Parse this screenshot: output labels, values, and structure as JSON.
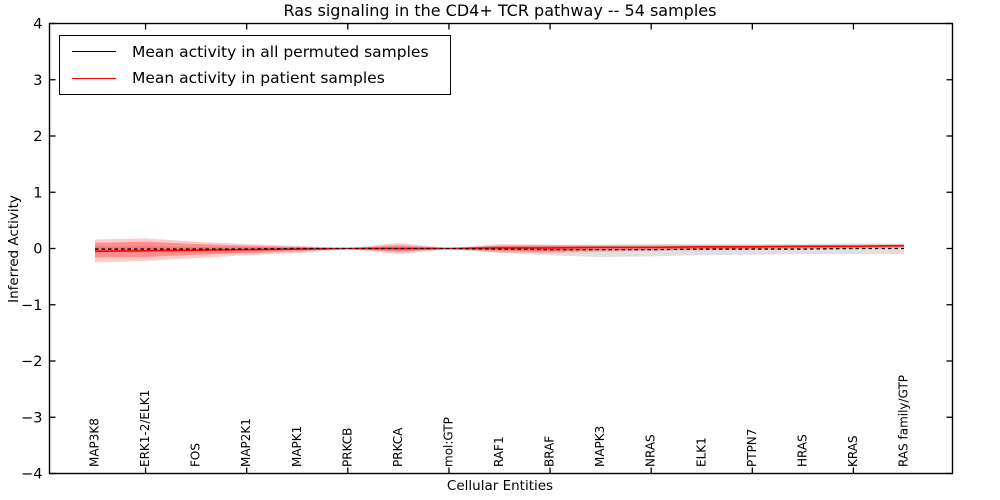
{
  "figure": {
    "title": "Ras signaling in the CD4+ TCR pathway -- 54 samples",
    "sample_count_shown_in_title": 54
  },
  "legend": {
    "entries": [
      {
        "label": "Mean activity in all permuted samples",
        "color": "#000000"
      },
      {
        "label": "Mean activity in patient samples",
        "color": "#ff0000"
      }
    ],
    "position": "upper-left",
    "border_color": "#000000"
  },
  "chart_data": {
    "type": "line",
    "title": "Ras signaling in the CD4+ TCR pathway -- 54 samples",
    "xlabel": "Cellular Entities",
    "ylabel": "Inferred Activity",
    "ylim": [
      -4,
      4
    ],
    "yticks": [
      4,
      3,
      2,
      1,
      0,
      -1,
      -2,
      -3,
      -4
    ],
    "xtick_indices": [
      1,
      3,
      5,
      7,
      9,
      11,
      13,
      15
    ],
    "grid": false,
    "legend_position": "upper-left",
    "categories": [
      "MAP3K8",
      "ERK1-2/ELK1",
      "FOS",
      "MAP2K1",
      "MAPK1",
      "PRKCB",
      "PRKCA",
      "mol:GTP",
      "RAF1",
      "BRAF",
      "MAPK3",
      "NRAS",
      "ELK1",
      "PTPN7",
      "HRAS",
      "KRAS",
      "RAS family/GTP"
    ],
    "series": [
      {
        "name": "Mean activity in all permuted samples",
        "color": "#000000",
        "style": "dashed",
        "values": [
          -0.01,
          -0.01,
          -0.01,
          -0.01,
          0.0,
          0.0,
          0.0,
          0.0,
          -0.01,
          -0.02,
          -0.02,
          -0.02,
          -0.01,
          -0.01,
          -0.01,
          0.0,
          0.0
        ]
      },
      {
        "name": "Mean activity in patient samples",
        "color": "#ff0000",
        "style": "solid",
        "values": [
          -0.05,
          -0.04,
          -0.03,
          -0.02,
          -0.01,
          0.0,
          0.0,
          0.0,
          0.01,
          0.01,
          0.02,
          0.02,
          0.03,
          0.03,
          0.04,
          0.04,
          0.05
        ]
      }
    ],
    "bands": [
      {
        "name": "permuted-samples-range",
        "color": "#999999",
        "opacity": 0.3,
        "upper": [
          0.04,
          0.04,
          0.03,
          0.03,
          0.02,
          0.01,
          0.03,
          0.01,
          0.05,
          0.06,
          0.07,
          0.08,
          0.08,
          0.08,
          0.08,
          0.09,
          0.09
        ],
        "lower": [
          -0.06,
          -0.06,
          -0.05,
          -0.04,
          -0.03,
          -0.01,
          -0.04,
          -0.01,
          -0.08,
          -0.12,
          -0.15,
          -0.14,
          -0.12,
          -0.11,
          -0.1,
          -0.1,
          -0.1
        ]
      },
      {
        "name": "patient-samples-range-outer",
        "color": "#ff0000",
        "opacity": 0.2,
        "upper": [
          0.16,
          0.18,
          0.12,
          0.08,
          0.05,
          0.01,
          0.1,
          0.01,
          0.08,
          0.07,
          0.06,
          0.06,
          0.06,
          0.06,
          0.06,
          0.07,
          0.07
        ],
        "lower": [
          -0.25,
          -0.22,
          -0.17,
          -0.12,
          -0.08,
          -0.01,
          -0.1,
          -0.01,
          -0.07,
          -0.08,
          -0.06,
          -0.04,
          -0.03,
          -0.02,
          -0.01,
          0.0,
          0.02
        ]
      },
      {
        "name": "patient-samples-range-inner",
        "color": "#ff0000",
        "opacity": 0.3,
        "upper": [
          0.1,
          0.12,
          0.08,
          0.05,
          0.03,
          0.005,
          0.06,
          0.005,
          0.05,
          0.05,
          0.04,
          0.04,
          0.04,
          0.04,
          0.05,
          0.05,
          0.06
        ],
        "lower": [
          -0.16,
          -0.15,
          -0.11,
          -0.08,
          -0.05,
          -0.005,
          -0.06,
          -0.005,
          -0.04,
          -0.05,
          -0.03,
          -0.02,
          -0.01,
          0.0,
          0.01,
          0.02,
          0.03
        ]
      }
    ],
    "axis_color": "#000000",
    "background_color": "#ffffff"
  }
}
